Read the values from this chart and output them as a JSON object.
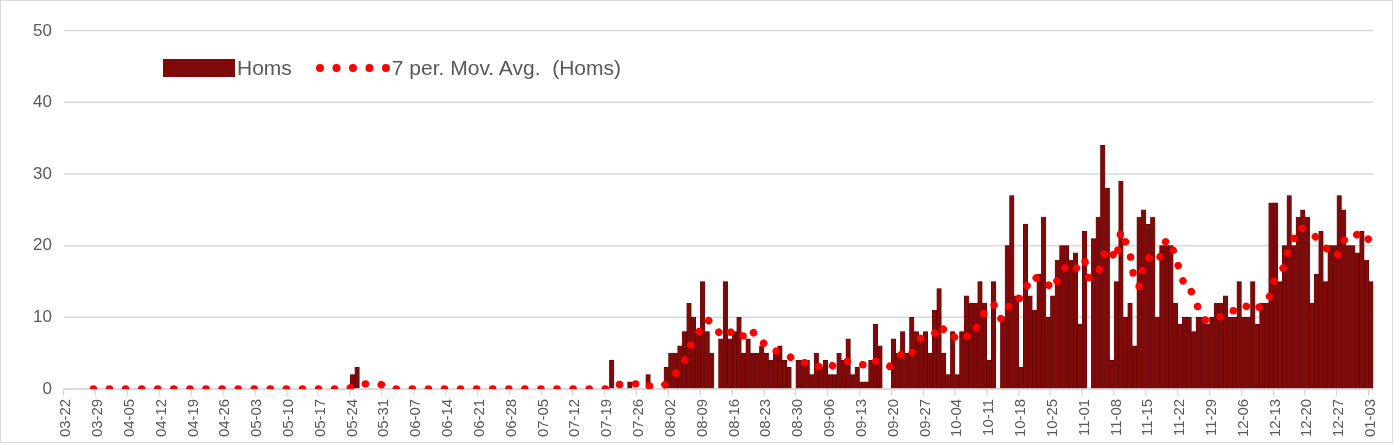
{
  "chart_data": {
    "type": "bar",
    "categories": [
      "03-22",
      null,
      null,
      null,
      null,
      null,
      null,
      "03-29",
      null,
      null,
      null,
      null,
      null,
      null,
      "04-05",
      null,
      null,
      null,
      null,
      null,
      null,
      "04-12",
      null,
      null,
      null,
      null,
      null,
      null,
      "04-19",
      null,
      null,
      null,
      null,
      null,
      null,
      "04-26",
      null,
      null,
      null,
      null,
      null,
      null,
      "05-03",
      null,
      null,
      null,
      null,
      null,
      null,
      "05-10",
      null,
      null,
      null,
      null,
      null,
      null,
      "05-17",
      null,
      null,
      null,
      null,
      null,
      null,
      "05-24",
      null,
      null,
      null,
      null,
      null,
      null,
      "05-31",
      null,
      null,
      null,
      null,
      null,
      null,
      "06-07",
      null,
      null,
      null,
      null,
      null,
      null,
      "06-14",
      null,
      null,
      null,
      null,
      null,
      null,
      "06-21",
      null,
      null,
      null,
      null,
      null,
      null,
      "06-28",
      null,
      null,
      null,
      null,
      null,
      null,
      "07-05",
      null,
      null,
      null,
      null,
      null,
      null,
      "07-12",
      null,
      null,
      null,
      null,
      null,
      null,
      "07-19",
      null,
      null,
      null,
      null,
      null,
      null,
      "07-26",
      null,
      null,
      null,
      null,
      null,
      null,
      "08-02",
      null,
      null,
      null,
      null,
      null,
      null,
      "08-09",
      null,
      null,
      null,
      null,
      null,
      null,
      "08-16",
      null,
      null,
      null,
      null,
      null,
      null,
      "08-23",
      null,
      null,
      null,
      null,
      null,
      null,
      "08-30",
      null,
      null,
      null,
      null,
      null,
      null,
      "09-06",
      null,
      null,
      null,
      null,
      null,
      null,
      "09-13",
      null,
      null,
      null,
      null,
      null,
      null,
      "09-20",
      null,
      null,
      null,
      null,
      null,
      null,
      "09-27",
      null,
      null,
      null,
      null,
      null,
      null,
      "10-04",
      null,
      null,
      null,
      null,
      null,
      null,
      "10-11",
      null,
      null,
      null,
      null,
      null,
      null,
      "10-18",
      null,
      null,
      null,
      null,
      null,
      null,
      "10-25",
      null,
      null,
      null,
      null,
      null,
      null,
      "11-01",
      null,
      null,
      null,
      null,
      null,
      null,
      "11-08",
      null,
      null,
      null,
      null,
      null,
      null,
      "11-15",
      null,
      null,
      null,
      null,
      null,
      null,
      "11-22",
      null,
      null,
      null,
      null,
      null,
      null,
      "11-29",
      null,
      null,
      null,
      null,
      null,
      null,
      "12-06",
      null,
      null,
      null,
      null,
      null,
      null,
      "12-13",
      null,
      null,
      null,
      null,
      null,
      null,
      "12-20",
      null,
      null,
      null,
      null,
      null,
      null,
      "12-27",
      null,
      null,
      null,
      null,
      null,
      null,
      "01-03"
    ],
    "series": [
      {
        "name": "Homs",
        "color": "#7f0a0a",
        "values": [
          0,
          0,
          0,
          0,
          0,
          0,
          0,
          0,
          0,
          0,
          0,
          0,
          0,
          0,
          0,
          0,
          0,
          0,
          0,
          0,
          0,
          0,
          0,
          0,
          0,
          0,
          0,
          0,
          0,
          0,
          0,
          0,
          0,
          0,
          0,
          0,
          0,
          0,
          0,
          0,
          0,
          0,
          0,
          0,
          0,
          0,
          0,
          0,
          0,
          0,
          0,
          0,
          0,
          0,
          0,
          0,
          0,
          0,
          0,
          0,
          0,
          0,
          0,
          2,
          3,
          0,
          0,
          0,
          0,
          0,
          0,
          0,
          0,
          0,
          0,
          0,
          0,
          0,
          0,
          0,
          0,
          0,
          0,
          0,
          0,
          0,
          0,
          0,
          0,
          0,
          0,
          0,
          0,
          0,
          0,
          0,
          0,
          0,
          0,
          0,
          0,
          0,
          0,
          0,
          0,
          0,
          0,
          0,
          0,
          0,
          0,
          0,
          0,
          0,
          0,
          0,
          0,
          0,
          0,
          0,
          4,
          0,
          0,
          0,
          1,
          0,
          0,
          0,
          2,
          0,
          0,
          0,
          3,
          5,
          5,
          6,
          8,
          12,
          10,
          8,
          15,
          8,
          5,
          0,
          7,
          15,
          7,
          8,
          10,
          5,
          7,
          5,
          5,
          6,
          5,
          4,
          5,
          6,
          4,
          3,
          0,
          4,
          4,
          4,
          2,
          5,
          3,
          4,
          2,
          2,
          5,
          4,
          7,
          2,
          3,
          1,
          1,
          4,
          9,
          6,
          0,
          0,
          7,
          5,
          8,
          5,
          10,
          8,
          7,
          8,
          5,
          11,
          14,
          5,
          2,
          8,
          2,
          8,
          13,
          12,
          12,
          15,
          12,
          4,
          15,
          0,
          10,
          20,
          27,
          13,
          3,
          23,
          13,
          11,
          16,
          24,
          10,
          13,
          18,
          20,
          20,
          18,
          19,
          9,
          22,
          0,
          21,
          24,
          34,
          28,
          4,
          15,
          29,
          10,
          12,
          6,
          24,
          25,
          23,
          24,
          10,
          20,
          20,
          20,
          12,
          9,
          10,
          10,
          8,
          10,
          10,
          9,
          10,
          12,
          12,
          13,
          10,
          10,
          15,
          10,
          10,
          15,
          9,
          12,
          12,
          26,
          26,
          15,
          20,
          27,
          20,
          24,
          25,
          24,
          12,
          16,
          22,
          15,
          20,
          20,
          27,
          25,
          20,
          20,
          19,
          22,
          18,
          15
        ]
      },
      {
        "name": "7 per. Mov. Avg.  (Homs)",
        "type": "line",
        "line_style": "dotted",
        "color": "#ff0000",
        "values": [
          null,
          null,
          null,
          null,
          null,
          null,
          0,
          0,
          0,
          0,
          0,
          0,
          0,
          0,
          0,
          0,
          0,
          0,
          0,
          0,
          0,
          0,
          0,
          0,
          0,
          0,
          0,
          0,
          0,
          0,
          0,
          0,
          0,
          0,
          0,
          0,
          0,
          0,
          0,
          0,
          0,
          0,
          0,
          0,
          0,
          0,
          0,
          0,
          0,
          0,
          0,
          0,
          0,
          0,
          0,
          0,
          0,
          0,
          0,
          0,
          0,
          0,
          0,
          0.3,
          0.7,
          0.7,
          0.7,
          0.7,
          0.7,
          0.7,
          0.4,
          0,
          0,
          0,
          0,
          0,
          0,
          0,
          0,
          0,
          0,
          0,
          0,
          0,
          0,
          0,
          0,
          0,
          0,
          0,
          0,
          0,
          0,
          0,
          0,
          0,
          0,
          0,
          0,
          0,
          0,
          0,
          0,
          0,
          0,
          0,
          0,
          0,
          0,
          0,
          0,
          0,
          0,
          0,
          0,
          0,
          0,
          0,
          0,
          0,
          0.6,
          0.6,
          0.6,
          0.6,
          0.7,
          0.7,
          0.7,
          0.1,
          0.4,
          0.4,
          0.4,
          0.3,
          0.7,
          1.4,
          2.1,
          2.7,
          3.9,
          5.6,
          7.0,
          7.7,
          9.1,
          9.6,
          9.4,
          8.3,
          7.6,
          8.3,
          8.1,
          7.1,
          7.4,
          7.4,
          8.4,
          8.1,
          6.7,
          6.6,
          6.1,
          5.3,
          5.3,
          5.1,
          5.0,
          4.7,
          3.9,
          3.7,
          3.7,
          3.6,
          3.0,
          3.1,
          3.1,
          3.7,
          3.4,
          3.1,
          3.3,
          3.6,
          3.9,
          3.7,
          3.6,
          3.4,
          3.3,
          3.1,
          3.9,
          3.7,
          3.4,
          3.0,
          3.9,
          4.4,
          5.0,
          4.4,
          5.0,
          6.1,
          7.1,
          7.3,
          7.3,
          7.7,
          9.0,
          8.3,
          7.4,
          7.6,
          6.7,
          7.1,
          7.4,
          7.1,
          8.1,
          10.0,
          10.6,
          10.9,
          11.9,
          10.0,
          9.7,
          10.9,
          12.6,
          12.7,
          12.6,
          13.7,
          15.6,
          15.7,
          15.1,
          14.7,
          14.3,
          15.7,
          15.0,
          16.0,
          17.3,
          17.6,
          16.9,
          16.7,
          18.0,
          15.4,
          15.6,
          16.1,
          18.4,
          19.7,
          19.0,
          18.0,
          22.1,
          20.6,
          18.9,
          14.9,
          14.3,
          17.3,
          18.4,
          17.7,
          17.7,
          18.9,
          20.9,
          20.3,
          18.4,
          16.4,
          14.4,
          14.4,
          12.7,
          11.3,
          9.9,
          9.4,
          9.6,
          9.9,
          10.1,
          10.9,
          10.9,
          10.9,
          11.7,
          11.7,
          11.4,
          11.9,
          11.3,
          11.6,
          11.9,
          13.4,
          15.7,
          16.4,
          17.1,
          19.7,
          20.9,
          22.6,
          22.4,
          22.1,
          21.7,
          21.1,
          20.4,
          19.7,
          19.1,
          18.4,
          18.9,
          20.7,
          21.3,
          21.0,
          21.6,
          21.9,
          21.6,
          19.9
        ]
      }
    ],
    "ylim": [
      0,
      50
    ],
    "yticks": [
      0,
      10,
      20,
      30,
      40,
      50
    ],
    "grid": "y",
    "legend": "top left"
  }
}
